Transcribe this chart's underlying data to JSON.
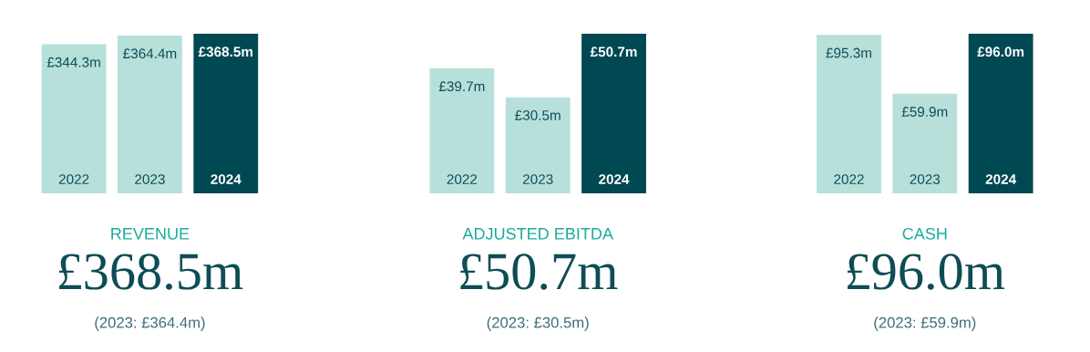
{
  "chart_data": [
    {
      "type": "bar",
      "title": "REVENUE",
      "subtitle": "£368.5m",
      "annotations": [
        "(2023: £364.4m)"
      ],
      "categories": [
        "2022",
        "2023",
        "2024"
      ],
      "values": [
        344.3,
        364.4,
        368.5
      ],
      "colors": [
        "#b7e0db",
        "#b7e0db",
        "#004852"
      ],
      "value_labels": [
        "£344.3m",
        "£364.4m",
        "£368.5m"
      ]
    },
    {
      "type": "bar",
      "title": "ADJUSTED EBITDA",
      "subtitle": "£50.7m",
      "annotations": [
        "(2023: £30.5m)"
      ],
      "categories": [
        "2022",
        "2023",
        "2024"
      ],
      "values": [
        39.7,
        30.5,
        50.7
      ],
      "colors": [
        "#b7e0db",
        "#b7e0db",
        "#004852"
      ],
      "value_labels": [
        "£39.7m",
        "£30.5m",
        "£50.7m"
      ]
    },
    {
      "type": "bar",
      "title": "CASH",
      "subtitle": "£96.0m",
      "annotations": [
        "(2023: £59.9m)"
      ],
      "categories": [
        "2022",
        "2023",
        "2024"
      ],
      "values": [
        95.3,
        59.9,
        96.0
      ],
      "colors": [
        "#b7e0db",
        "#b7e0db",
        "#004852"
      ],
      "value_labels": [
        "£95.3m",
        "£59.9m",
        "£96.0m"
      ]
    }
  ]
}
